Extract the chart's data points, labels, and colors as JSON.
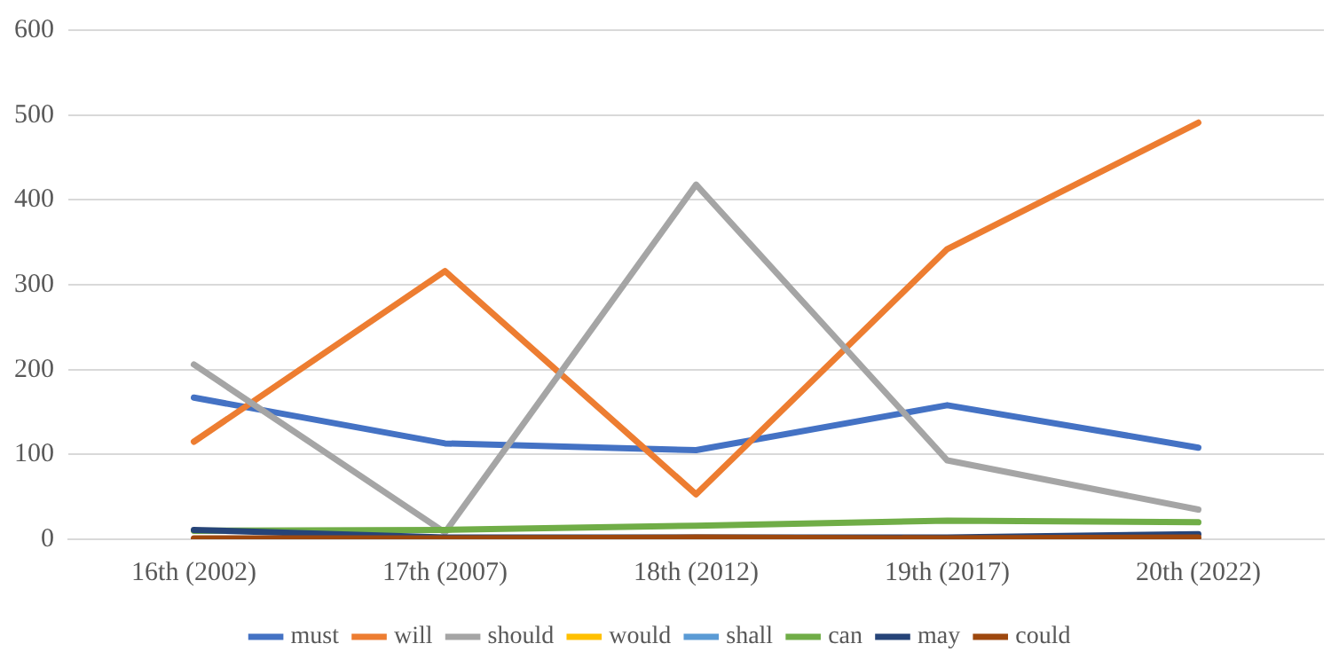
{
  "chart_data": {
    "type": "line",
    "categories": [
      "16th (2002)",
      "17th (2007)",
      "18th (2012)",
      "19th (2017)",
      "20th (2022)"
    ],
    "series": [
      {
        "name": "must",
        "color": "#4472c4",
        "values": [
          167,
          113,
          105,
          158,
          108
        ]
      },
      {
        "name": "will",
        "color": "#ed7d31",
        "values": [
          115,
          316,
          53,
          342,
          491
        ]
      },
      {
        "name": "should",
        "color": "#a5a5a5",
        "values": [
          206,
          8,
          418,
          93,
          35
        ]
      },
      {
        "name": "would",
        "color": "#ffc000",
        "values": [
          null,
          null,
          null,
          null,
          null
        ]
      },
      {
        "name": "shall",
        "color": "#5b9bd5",
        "values": [
          null,
          null,
          null,
          null,
          null
        ]
      },
      {
        "name": "can",
        "color": "#70ad47",
        "values": [
          10,
          11,
          16,
          22,
          20
        ]
      },
      {
        "name": "may",
        "color": "#264478",
        "values": [
          11,
          2,
          2,
          2,
          6
        ]
      },
      {
        "name": "could",
        "color": "#9e480e",
        "values": [
          1,
          1,
          2,
          1,
          2
        ]
      }
    ],
    "ylim": [
      0,
      600
    ],
    "yticks": [
      0,
      100,
      200,
      300,
      400,
      500,
      600
    ],
    "grid": "y",
    "legend": "bottom",
    "marker": "none",
    "line_style": "solid"
  }
}
